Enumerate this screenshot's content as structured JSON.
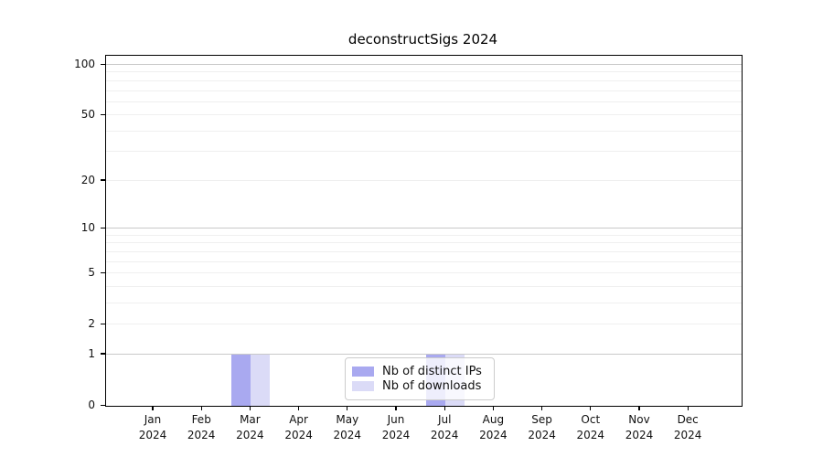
{
  "chart_data": {
    "type": "bar",
    "title": "deconstructSigs 2024",
    "categories": [
      "Jan",
      "Feb",
      "Mar",
      "Apr",
      "May",
      "Jun",
      "Jul",
      "Aug",
      "Sep",
      "Oct",
      "Nov",
      "Dec"
    ],
    "category_year": "2024",
    "series": [
      {
        "name": "Nb of distinct IPs",
        "color": "#a9a9f0",
        "values": [
          0,
          0,
          1,
          0,
          0,
          0,
          1,
          0,
          0,
          0,
          0,
          0
        ]
      },
      {
        "name": "Nb of downloads",
        "color": "#dbdbf7",
        "values": [
          0,
          0,
          1,
          0,
          0,
          0,
          1,
          0,
          0,
          0,
          0,
          0
        ]
      }
    ],
    "xlabel": "",
    "ylabel": "",
    "yscale": "log1p",
    "ylim": [
      0,
      100
    ],
    "y_ticks": [
      0,
      1,
      2,
      5,
      10,
      20,
      50,
      100
    ],
    "y_minor_ticks": [
      3,
      4,
      6,
      7,
      8,
      9,
      30,
      40,
      60,
      70,
      80,
      90
    ],
    "grid": "horizontal",
    "legend_position": "bottom-center-inside",
    "colors": {
      "grid_major_power10": "#c9c9c9",
      "grid_regular": "#efefef",
      "axis": "#000000",
      "background": "#ffffff"
    }
  }
}
